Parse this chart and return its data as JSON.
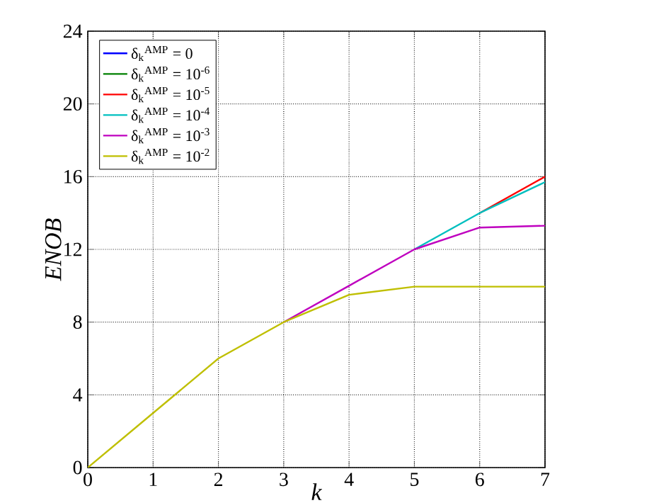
{
  "chart_data": {
    "type": "line",
    "xlabel": "k",
    "ylabel": "ENOB",
    "x": [
      0,
      1,
      2,
      3,
      4,
      5,
      6,
      7
    ],
    "xlim": [
      0,
      7
    ],
    "ylim": [
      0,
      24
    ],
    "xticks": [
      0,
      1,
      2,
      3,
      4,
      5,
      6,
      7
    ],
    "yticks": [
      0,
      4,
      8,
      12,
      16,
      20,
      24
    ],
    "grid": true,
    "legend": "top left",
    "marker": "none",
    "line_style": "solid",
    "series": [
      {
        "name": "δ$_{k}$$^{AMP}$ = 0",
        "color": "#0000ff",
        "values": [
          null,
          null,
          null,
          null,
          null,
          null,
          null,
          null
        ]
      },
      {
        "name": "δ$_{k}$$^{AMP}$ = 10$^{-6}$",
        "color": "#008000",
        "values": [
          null,
          null,
          null,
          null,
          null,
          null,
          null,
          null
        ]
      },
      {
        "name": "δ$_{k}$$^{AMP}$ = 10$^{-5}$",
        "color": "#ff0000",
        "values": [
          null,
          null,
          null,
          null,
          null,
          null,
          14,
          16
        ]
      },
      {
        "name": "δ$_{k}$$^{AMP}$ = 10$^{-4}$",
        "color": "#00bfbf",
        "values": [
          null,
          null,
          null,
          null,
          null,
          12,
          14,
          15.7
        ]
      },
      {
        "name": "δ$_{k}$$^{AMP}$ = 10$^{-3}$",
        "color": "#bf00bf",
        "values": [
          null,
          null,
          null,
          8,
          10,
          12,
          13.2,
          13.3
        ]
      },
      {
        "name": "δ$_{k}$$^{AMP}$ = 10$^{-2}$",
        "color": "#bfbf00",
        "values": [
          0,
          3,
          6,
          8,
          9.5,
          9.95,
          9.95,
          9.95
        ]
      }
    ]
  }
}
